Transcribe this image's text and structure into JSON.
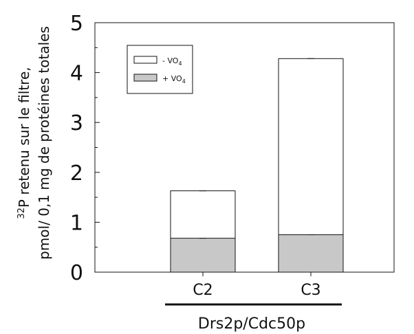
{
  "chart_data": {
    "type": "bar",
    "stacked": false,
    "overlapped": true,
    "categories": [
      "C2",
      "C3"
    ],
    "group_label": "Drs2p/Cdc50p",
    "ylabel_line1_sup": "32",
    "ylabel_line1_text": "P retenu sur le filtre,",
    "ylabel_line2": "pmol/ 0,1 mg de protéines totales",
    "ylim": [
      0,
      5
    ],
    "yticks": [
      "0",
      "1",
      "2",
      "3",
      "4",
      "5"
    ],
    "series": [
      {
        "name": "- VO",
        "name_sub": "4",
        "values": [
          1.63,
          4.28
        ],
        "color": "#ffffff"
      },
      {
        "name": "+ VO",
        "name_sub": "4",
        "values": [
          0.68,
          0.75
        ],
        "color": "#c8c8c8"
      }
    ],
    "legend_position": "top-left"
  }
}
